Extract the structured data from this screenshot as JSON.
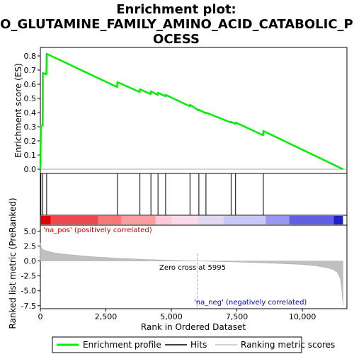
{
  "chart_data": {
    "type": "line",
    "title_lines": [
      "Enrichment plot:",
      "GO_GLUTAMINE_FAMILY_AMINO_ACID_CATABOLIC_PR",
      "OCESS"
    ],
    "xlabel": "Rank in Ordered Dataset",
    "xlim": [
      0,
      11700
    ],
    "x_ticks": [
      0,
      2500,
      5000,
      7500,
      10000
    ],
    "x_tick_labels": [
      "0",
      "2,500",
      "5,000",
      "7,500",
      "10,000"
    ],
    "es_panel": {
      "ylabel": "Enrichment score (ES)",
      "ylim": [
        -0.03,
        0.86
      ],
      "y_ticks": [
        0.0,
        0.1,
        0.2,
        0.3,
        0.4,
        0.5,
        0.6,
        0.7,
        0.8
      ],
      "y_tick_labels": [
        "0.0",
        "0.1",
        "0.2",
        "0.3",
        "0.4",
        "0.5",
        "0.6",
        "0.7",
        "0.8"
      ],
      "series_name": "Enrichment profile",
      "color": "#00ee00",
      "x": [
        0,
        20,
        90,
        95,
        230,
        240,
        2930,
        2940,
        3790,
        3800,
        4210,
        4220,
        4480,
        4490,
        4770,
        4780,
        5700,
        5710,
        6040,
        6050,
        6310,
        6320,
        7270,
        7280,
        7440,
        7450,
        8500,
        8510,
        11550
      ],
      "y": [
        0.0,
        0.31,
        0.31,
        0.68,
        0.67,
        0.815,
        0.58,
        0.615,
        0.545,
        0.565,
        0.53,
        0.55,
        0.525,
        0.54,
        0.515,
        0.525,
        0.445,
        0.455,
        0.415,
        0.42,
        0.395,
        0.4,
        0.33,
        0.335,
        0.32,
        0.33,
        0.24,
        0.27,
        0.0
      ]
    },
    "hits": {
      "series_name": "Hits",
      "x": [
        20,
        95,
        240,
        2940,
        3800,
        4220,
        4490,
        4780,
        5710,
        6050,
        6320,
        7280,
        7450,
        8510
      ]
    },
    "rank_panel": {
      "ylabel": "Ranked list metric (PreRanked)",
      "ylim": [
        -8.0,
        6.0
      ],
      "y_ticks": [
        5.0,
        2.5,
        0.0,
        -2.5,
        -5.0,
        -7.5
      ],
      "y_tick_labels": [
        "5.0",
        "2.5",
        "0.0",
        "-2.5",
        "-5.0",
        "-7.5"
      ],
      "series_name": "Ranking metric scores",
      "color": "#c0c0c0",
      "x": [
        0,
        30,
        100,
        300,
        600,
        1000,
        1500,
        2000,
        3000,
        4000,
        5000,
        5995,
        7000,
        8000,
        9000,
        10000,
        10500,
        11000,
        11200,
        11350,
        11450,
        11500,
        11550
      ],
      "y": [
        3.0,
        2.3,
        1.9,
        1.6,
        1.3,
        1.1,
        0.9,
        0.7,
        0.45,
        0.25,
        0.1,
        0.0,
        -0.12,
        -0.25,
        -0.4,
        -0.6,
        -0.8,
        -1.2,
        -1.5,
        -2.0,
        -3.0,
        -4.5,
        -7.4
      ]
    },
    "annotations": {
      "pos_label": "'na_pos' (positively correlated)",
      "neg_label": "'na_neg' (negatively correlated)",
      "zero_cross_label": "Zero cross at 5995",
      "zero_cross_x": 5995
    },
    "legend": {
      "placement": "bottom",
      "entries": [
        "Enrichment profile",
        "Hits",
        "Ranking metric scores"
      ]
    },
    "colorbar": {
      "segments": [
        {
          "from": 0,
          "to": 400,
          "color": "#e00000"
        },
        {
          "from": 400,
          "to": 2200,
          "color": "#f04848"
        },
        {
          "from": 2200,
          "to": 3100,
          "color": "#f87878"
        },
        {
          "from": 3100,
          "to": 4400,
          "color": "#f8a0a0"
        },
        {
          "from": 4400,
          "to": 5000,
          "color": "#fcc8dc"
        },
        {
          "from": 5000,
          "to": 6000,
          "color": "#fcd8ec"
        },
        {
          "from": 6000,
          "to": 7000,
          "color": "#e0d8f0"
        },
        {
          "from": 7000,
          "to": 8600,
          "color": "#c8c8f8"
        },
        {
          "from": 8600,
          "to": 9500,
          "color": "#9898f0"
        },
        {
          "from": 9500,
          "to": 11200,
          "color": "#6060e0"
        },
        {
          "from": 11200,
          "to": 11550,
          "color": "#2020c8"
        }
      ]
    }
  }
}
